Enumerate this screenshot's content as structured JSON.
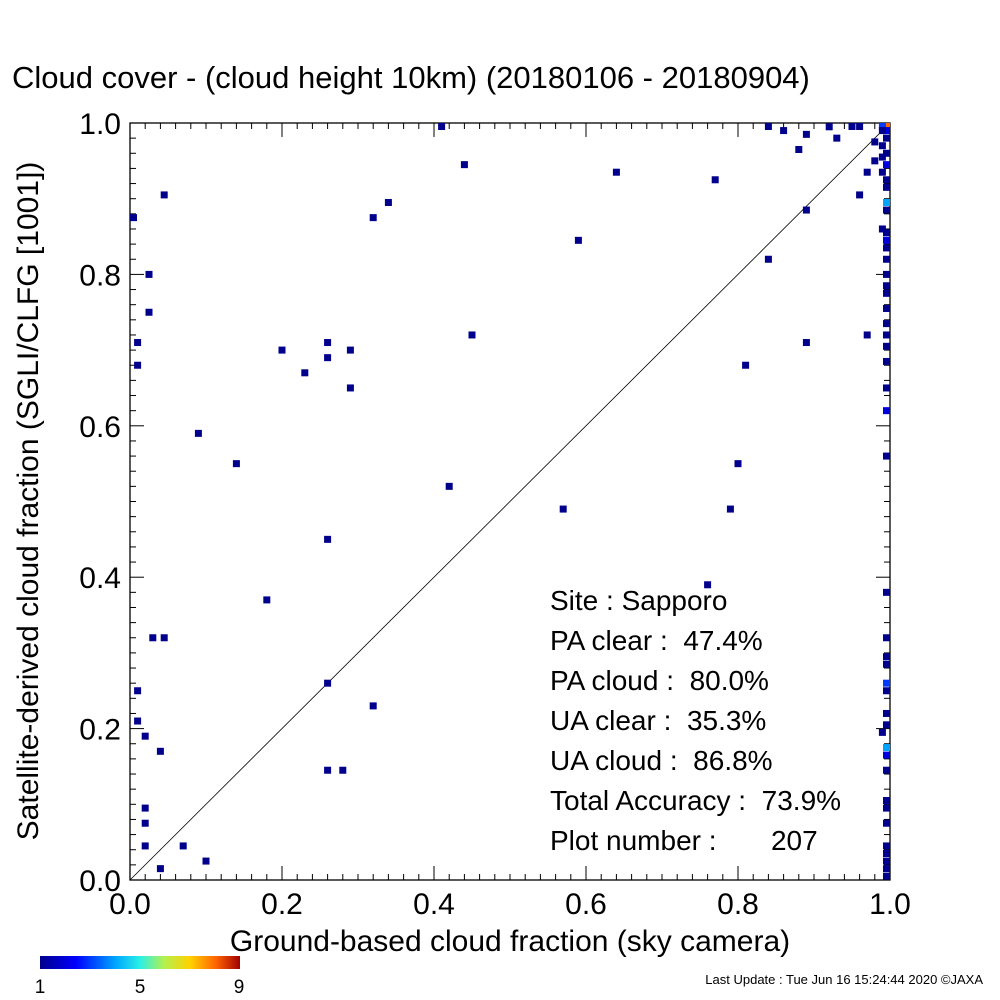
{
  "chart_data": {
    "type": "heatmap",
    "title": "Cloud cover - (cloud height 10km)  (20180106 - 20180904)",
    "xlabel": "Ground-based cloud fraction (sky camera)",
    "ylabel": "Satellite-derived cloud fraction (SGLI/CLFG [1001])",
    "xlim": [
      0.0,
      1.0
    ],
    "ylim": [
      0.0,
      1.0
    ],
    "xticks": [
      "0.0",
      "0.2",
      "0.4",
      "0.6",
      "0.8",
      "1.0"
    ],
    "yticks": [
      "0.0",
      "0.2",
      "0.4",
      "0.6",
      "0.8",
      "1.0"
    ],
    "diagonal_line": true,
    "colorbar": {
      "min": 1,
      "max": 9,
      "tick_labels": [
        "1",
        "5",
        "9"
      ]
    },
    "stats": [
      "Site : Sapporo",
      "PA clear :  47.4%",
      "PA cloud :  80.0%",
      "UA clear :  35.3%",
      "UA cloud :  86.8%",
      "Total Accuracy :  73.9%",
      "Plot number :       207"
    ],
    "points": [
      {
        "x": 0.41,
        "y": 1.0,
        "c": 1
      },
      {
        "x": 0.44,
        "y": 0.945,
        "c": 1
      },
      {
        "x": 0.64,
        "y": 0.935,
        "c": 1
      },
      {
        "x": 0.77,
        "y": 0.925,
        "c": 1
      },
      {
        "x": 0.045,
        "y": 0.905,
        "c": 1
      },
      {
        "x": 0.0,
        "y": 0.875,
        "c": 1
      },
      {
        "x": 0.32,
        "y": 0.875,
        "c": 1
      },
      {
        "x": 0.34,
        "y": 0.895,
        "c": 1
      },
      {
        "x": 0.59,
        "y": 0.845,
        "c": 1
      },
      {
        "x": 0.025,
        "y": 0.8,
        "c": 1
      },
      {
        "x": 0.025,
        "y": 0.75,
        "c": 1
      },
      {
        "x": 0.01,
        "y": 0.71,
        "c": 1
      },
      {
        "x": 0.01,
        "y": 0.68,
        "c": 1
      },
      {
        "x": 0.2,
        "y": 0.7,
        "c": 1
      },
      {
        "x": 0.26,
        "y": 0.71,
        "c": 1
      },
      {
        "x": 0.26,
        "y": 0.69,
        "c": 1
      },
      {
        "x": 0.29,
        "y": 0.7,
        "c": 1
      },
      {
        "x": 0.23,
        "y": 0.67,
        "c": 1
      },
      {
        "x": 0.29,
        "y": 0.65,
        "c": 1
      },
      {
        "x": 0.45,
        "y": 0.72,
        "c": 1
      },
      {
        "x": 0.09,
        "y": 0.59,
        "c": 1
      },
      {
        "x": 0.14,
        "y": 0.55,
        "c": 1
      },
      {
        "x": 0.42,
        "y": 0.52,
        "c": 1
      },
      {
        "x": 0.26,
        "y": 0.45,
        "c": 1
      },
      {
        "x": 0.57,
        "y": 0.49,
        "c": 1
      },
      {
        "x": 0.76,
        "y": 0.39,
        "c": 1
      },
      {
        "x": 0.8,
        "y": 0.55,
        "c": 1
      },
      {
        "x": 0.79,
        "y": 0.49,
        "c": 1
      },
      {
        "x": 0.81,
        "y": 0.68,
        "c": 1
      },
      {
        "x": 0.84,
        "y": 0.82,
        "c": 1
      },
      {
        "x": 0.89,
        "y": 0.71,
        "c": 1
      },
      {
        "x": 0.89,
        "y": 0.885,
        "c": 1
      },
      {
        "x": 0.97,
        "y": 0.72,
        "c": 1
      },
      {
        "x": 0.18,
        "y": 0.37,
        "c": 1
      },
      {
        "x": 0.03,
        "y": 0.32,
        "c": 1
      },
      {
        "x": 0.045,
        "y": 0.32,
        "c": 1
      },
      {
        "x": 0.01,
        "y": 0.25,
        "c": 1
      },
      {
        "x": 0.01,
        "y": 0.21,
        "c": 1
      },
      {
        "x": 0.02,
        "y": 0.19,
        "c": 1
      },
      {
        "x": 0.04,
        "y": 0.17,
        "c": 1
      },
      {
        "x": 0.26,
        "y": 0.26,
        "c": 1
      },
      {
        "x": 0.32,
        "y": 0.23,
        "c": 1
      },
      {
        "x": 0.26,
        "y": 0.145,
        "c": 1
      },
      {
        "x": 0.28,
        "y": 0.145,
        "c": 1
      },
      {
        "x": 0.02,
        "y": 0.095,
        "c": 1
      },
      {
        "x": 0.02,
        "y": 0.075,
        "c": 1
      },
      {
        "x": 0.02,
        "y": 0.045,
        "c": 1
      },
      {
        "x": 0.07,
        "y": 0.045,
        "c": 1
      },
      {
        "x": 0.04,
        "y": 0.015,
        "c": 1
      },
      {
        "x": 0.1,
        "y": 0.025,
        "c": 1
      },
      {
        "x": 0.84,
        "y": 1.0,
        "c": 1
      },
      {
        "x": 0.86,
        "y": 0.99,
        "c": 1
      },
      {
        "x": 0.88,
        "y": 0.965,
        "c": 1
      },
      {
        "x": 0.89,
        "y": 0.985,
        "c": 1
      },
      {
        "x": 0.92,
        "y": 0.995,
        "c": 1
      },
      {
        "x": 0.93,
        "y": 0.98,
        "c": 1
      },
      {
        "x": 0.95,
        "y": 1.0,
        "c": 1
      },
      {
        "x": 0.96,
        "y": 0.905,
        "c": 1
      },
      {
        "x": 0.97,
        "y": 0.935,
        "c": 1
      },
      {
        "x": 0.96,
        "y": 1.0,
        "c": 1
      },
      {
        "x": 0.98,
        "y": 0.95,
        "c": 1
      },
      {
        "x": 0.98,
        "y": 0.975,
        "c": 1
      },
      {
        "x": 1.0,
        "y": 1.0,
        "c": 8
      },
      {
        "x": 0.99,
        "y": 1.0,
        "c": 3
      },
      {
        "x": 1.0,
        "y": 0.99,
        "c": 2
      },
      {
        "x": 0.99,
        "y": 0.99,
        "c": 1
      },
      {
        "x": 1.0,
        "y": 0.98,
        "c": 1
      },
      {
        "x": 0.99,
        "y": 0.97,
        "c": 1
      },
      {
        "x": 1.0,
        "y": 0.96,
        "c": 1
      },
      {
        "x": 0.99,
        "y": 0.955,
        "c": 1
      },
      {
        "x": 1.0,
        "y": 0.945,
        "c": 2
      },
      {
        "x": 0.99,
        "y": 0.935,
        "c": 1
      },
      {
        "x": 1.0,
        "y": 0.925,
        "c": 1
      },
      {
        "x": 1.0,
        "y": 0.915,
        "c": 1
      },
      {
        "x": 1.0,
        "y": 0.895,
        "c": 4
      },
      {
        "x": 1.0,
        "y": 0.885,
        "c": 1
      },
      {
        "x": 0.99,
        "y": 0.86,
        "c": 1
      },
      {
        "x": 1.0,
        "y": 0.855,
        "c": 1
      },
      {
        "x": 1.0,
        "y": 0.845,
        "c": 2
      },
      {
        "x": 1.0,
        "y": 0.835,
        "c": 1
      },
      {
        "x": 1.0,
        "y": 0.82,
        "c": 1
      },
      {
        "x": 1.0,
        "y": 0.8,
        "c": 1
      },
      {
        "x": 1.0,
        "y": 0.785,
        "c": 1
      },
      {
        "x": 1.0,
        "y": 0.775,
        "c": 1
      },
      {
        "x": 1.0,
        "y": 0.755,
        "c": 1
      },
      {
        "x": 1.0,
        "y": 0.735,
        "c": 1
      },
      {
        "x": 1.0,
        "y": 0.72,
        "c": 1
      },
      {
        "x": 1.0,
        "y": 0.705,
        "c": 1
      },
      {
        "x": 1.0,
        "y": 0.685,
        "c": 1
      },
      {
        "x": 1.0,
        "y": 0.65,
        "c": 1
      },
      {
        "x": 1.0,
        "y": 0.62,
        "c": 2
      },
      {
        "x": 1.0,
        "y": 0.56,
        "c": 1
      },
      {
        "x": 1.0,
        "y": 0.38,
        "c": 1
      },
      {
        "x": 1.0,
        "y": 0.32,
        "c": 1
      },
      {
        "x": 1.0,
        "y": 0.295,
        "c": 1
      },
      {
        "x": 1.0,
        "y": 0.285,
        "c": 1
      },
      {
        "x": 1.0,
        "y": 0.26,
        "c": 3
      },
      {
        "x": 1.0,
        "y": 0.25,
        "c": 1
      },
      {
        "x": 1.0,
        "y": 0.22,
        "c": 1
      },
      {
        "x": 1.0,
        "y": 0.205,
        "c": 1
      },
      {
        "x": 0.99,
        "y": 0.195,
        "c": 1
      },
      {
        "x": 1.0,
        "y": 0.175,
        "c": 4
      },
      {
        "x": 1.0,
        "y": 0.165,
        "c": 2
      },
      {
        "x": 1.0,
        "y": 0.145,
        "c": 1
      },
      {
        "x": 1.0,
        "y": 0.105,
        "c": 1
      },
      {
        "x": 1.0,
        "y": 0.095,
        "c": 1
      },
      {
        "x": 1.0,
        "y": 0.075,
        "c": 1
      },
      {
        "x": 1.0,
        "y": 0.045,
        "c": 1
      },
      {
        "x": 1.0,
        "y": 0.035,
        "c": 1
      },
      {
        "x": 1.0,
        "y": 0.025,
        "c": 1
      },
      {
        "x": 1.0,
        "y": 0.015,
        "c": 1
      },
      {
        "x": 1.0,
        "y": 0.005,
        "c": 1
      }
    ]
  },
  "footer": {
    "last_update": "Last Update : Tue Jun 16 15:24:44 2020  ©JAXA"
  }
}
